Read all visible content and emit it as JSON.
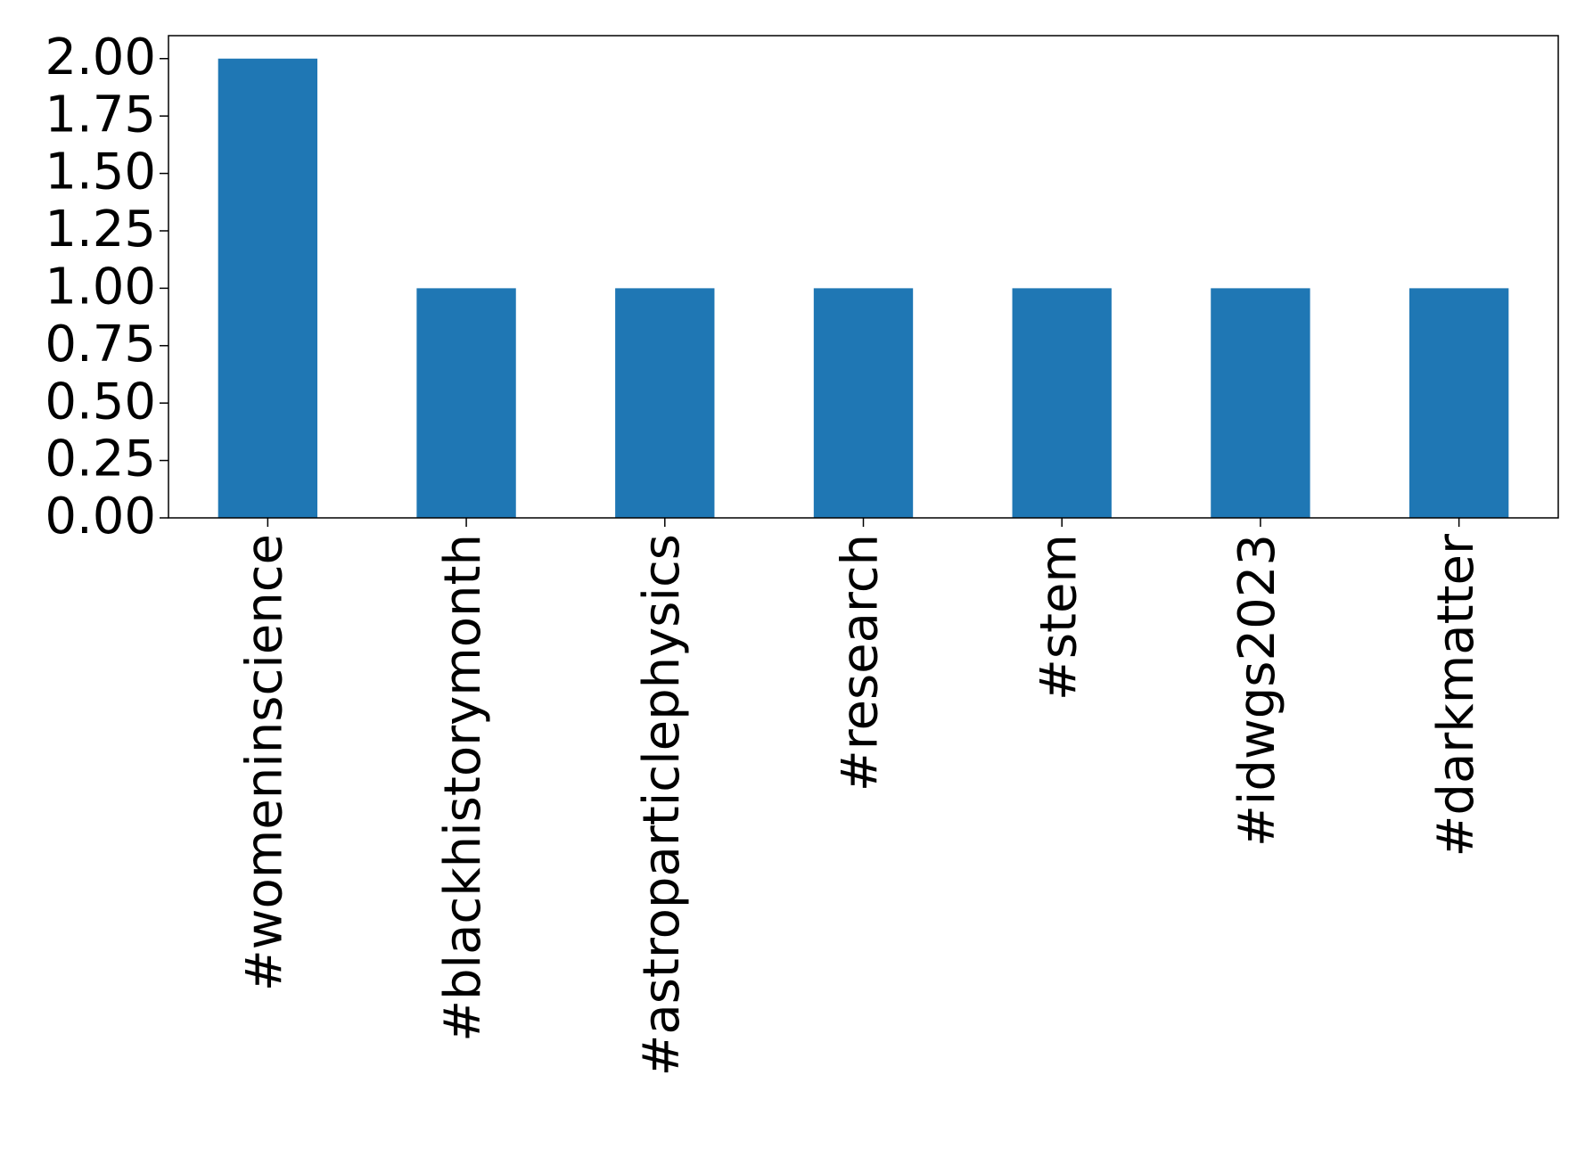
{
  "chart_data": {
    "type": "bar",
    "categories": [
      "#womeninscience",
      "#blackhistorymonth",
      "#astroparticlephysics",
      "#research",
      "#stem",
      "#idwgs2023",
      "#darkmatter"
    ],
    "values": [
      2,
      1,
      1,
      1,
      1,
      1,
      1
    ],
    "color": "#1f77b4",
    "ylim": [
      0,
      2.1
    ],
    "yticks": [
      {
        "value": 0,
        "label": "0.00"
      },
      {
        "value": 0.25,
        "label": "0.25"
      },
      {
        "value": 0.5,
        "label": "0.50"
      },
      {
        "value": 0.75,
        "label": "0.75"
      },
      {
        "value": 1,
        "label": "1.00"
      },
      {
        "value": 1.25,
        "label": "1.25"
      },
      {
        "value": 1.5,
        "label": "1.50"
      },
      {
        "value": 1.75,
        "label": "1.75"
      },
      {
        "value": 2,
        "label": "2.00"
      }
    ],
    "grid": false
  }
}
